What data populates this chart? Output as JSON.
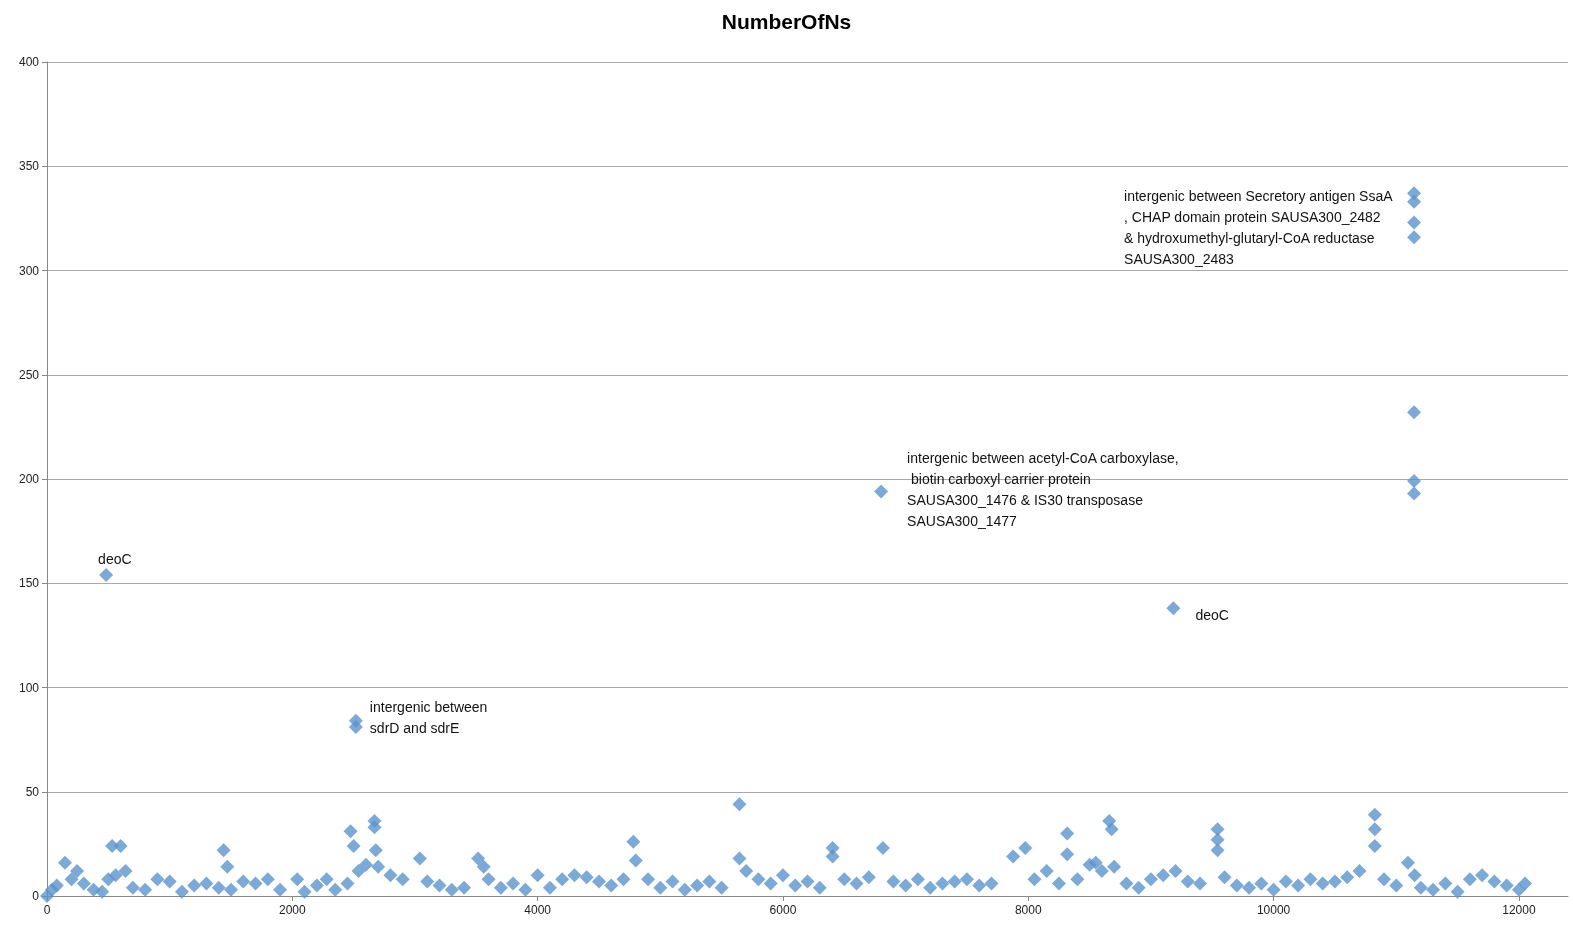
{
  "chart_data": {
    "type": "scatter",
    "title": "NumberOfNs",
    "marker": "diamond",
    "grid": "y",
    "xlim": [
      0,
      12400
    ],
    "xticks": [
      0,
      2000,
      4000,
      6000,
      8000,
      10000,
      12000
    ],
    "ylim": [
      0,
      400
    ],
    "yticks": [
      0,
      50,
      100,
      150,
      200,
      250,
      300,
      350,
      400
    ],
    "series": [
      {
        "color": "#5b93cb",
        "x": [
          0,
          40,
          80,
          147,
          200,
          245,
          300,
          380,
          450,
          500,
          531,
          560,
          600,
          640,
          700,
          800,
          900,
          1000,
          1100,
          1200,
          1300,
          1400,
          1440,
          1470,
          1500,
          1600,
          1700,
          1800,
          1900,
          2040,
          2100,
          2200,
          2280,
          2350,
          2450,
          2475,
          2500,
          2540,
          2600,
          2670,
          2670,
          2680,
          2700,
          2800,
          2900,
          3040,
          3100,
          3200,
          3300,
          3400,
          3515,
          3560,
          3600,
          3700,
          3800,
          3900,
          4000,
          4100,
          4200,
          4300,
          4400,
          4500,
          4600,
          4700,
          4780,
          4800,
          4900,
          5000,
          5100,
          5200,
          5300,
          5400,
          5500,
          5645,
          5645,
          5700,
          5800,
          5900,
          6000,
          6100,
          6200,
          6300,
          6405,
          6405,
          6500,
          6600,
          6700,
          6815,
          6900,
          7000,
          7100,
          7200,
          7300,
          7400,
          7500,
          7600,
          7700,
          7876,
          7975,
          8050,
          8150,
          8250,
          8317,
          8317,
          8400,
          8500,
          8550,
          8600,
          8660,
          8680,
          8700,
          8800,
          8900,
          9000,
          9100,
          9200,
          9300,
          9400,
          9543,
          9543,
          9543,
          9600,
          9700,
          9800,
          9900,
          10000,
          10100,
          10200,
          10300,
          10400,
          10500,
          10600,
          10700,
          10825,
          10825,
          10825,
          10900,
          11000,
          11095,
          11150,
          11200,
          11300,
          11400,
          11500,
          11600,
          11700,
          11800,
          11900,
          12000,
          12050,
          482,
          2518,
          2518,
          6800,
          9183,
          11145,
          11145,
          11145,
          11145,
          11145,
          11145,
          11145
        ],
        "values": [
          0,
          3,
          5,
          16,
          8,
          12,
          6,
          3,
          2,
          8,
          24,
          10,
          24,
          12,
          4,
          3,
          8,
          7,
          2,
          5,
          6,
          4,
          22,
          14,
          3,
          7,
          6,
          8,
          3,
          8,
          2,
          5,
          8,
          3,
          6,
          31,
          24,
          12,
          15,
          36,
          33,
          22,
          14,
          10,
          8,
          18,
          7,
          5,
          3,
          4,
          18,
          14,
          8,
          4,
          6,
          3,
          10,
          4,
          8,
          10,
          9,
          7,
          5,
          8,
          26,
          17,
          8,
          4,
          7,
          3,
          5,
          7,
          4,
          44,
          18,
          12,
          8,
          6,
          10,
          5,
          7,
          4,
          23,
          19,
          8,
          6,
          9,
          23,
          7,
          5,
          8,
          4,
          6,
          7,
          8,
          5,
          6,
          19,
          23,
          8,
          12,
          6,
          30,
          20,
          8,
          15,
          16,
          12,
          36,
          32,
          14,
          6,
          4,
          8,
          10,
          12,
          7,
          6,
          32,
          27,
          22,
          9,
          5,
          4,
          6,
          3,
          7,
          5,
          8,
          6,
          7,
          9,
          12,
          39,
          32,
          24,
          8,
          5,
          16,
          10,
          4,
          3,
          6,
          2,
          8,
          10,
          7,
          5,
          3,
          6,
          154,
          84,
          81,
          194,
          138,
          337,
          333,
          323,
          316,
          232,
          199,
          193
        ]
      }
    ],
    "annotations": [
      {
        "text": "deoC",
        "x": 482,
        "y": 154
      },
      {
        "text": "intergenic between sdrD and sdrE",
        "x": 2518,
        "y": 84
      },
      {
        "text": "intergenic between acetyl-CoA carboxylase, biotin carboxyl carrier protein SAUSA300_1476 & IS30 transposase SAUSA300_1477",
        "x": 6800,
        "y": 194
      },
      {
        "text": "deoC",
        "x": 9183,
        "y": 138
      },
      {
        "text": "intergenic between Secretory antigen SsaA, CHAP domain protein SAUSA300_2482 & hydroxumethyl-glutaryl-CoA reductase SAUSA300_2483",
        "x": 11145,
        "y": 337
      }
    ]
  }
}
